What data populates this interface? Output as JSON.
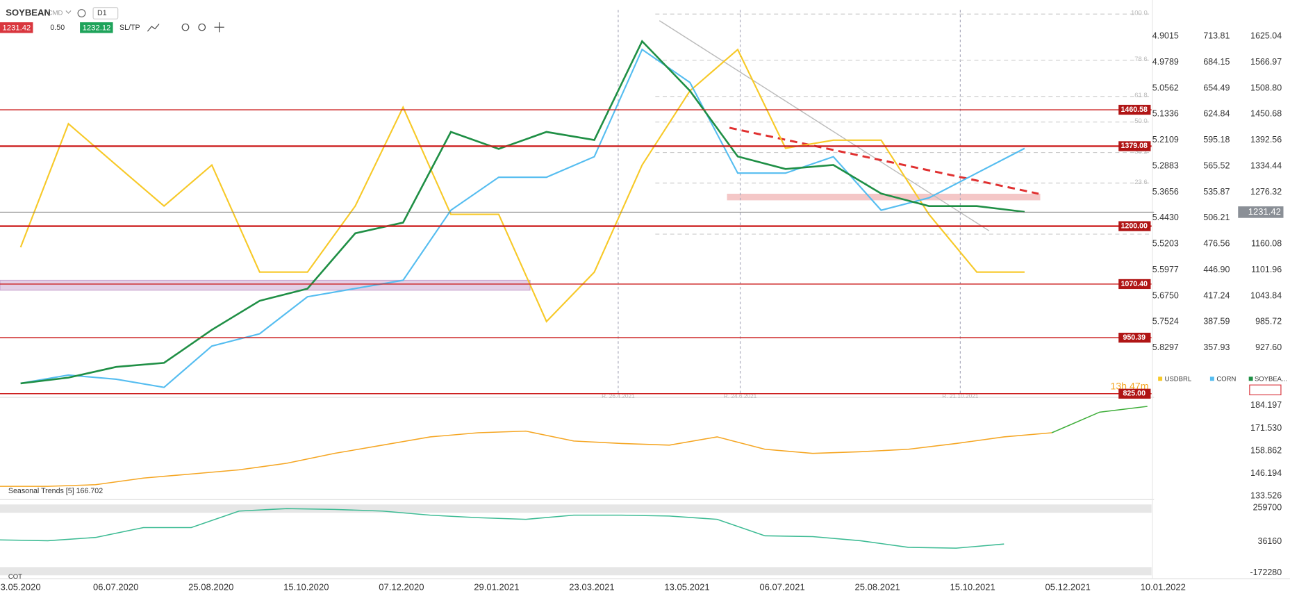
{
  "header": {
    "symbol": "SOYBEAN",
    "category": "CMD",
    "interval": "D1",
    "bid": "1231.42",
    "spread": "0.50",
    "ask": "1232.12",
    "sltp": "SL/TP"
  },
  "main": {
    "axes": {
      "usdbrl": [
        4.9015,
        4.9789,
        5.0562,
        5.1336,
        5.2109,
        5.2883,
        5.3656,
        {
          "value": 5.443,
          "label": "5.4430"
        },
        5.5203,
        5.5977,
        {
          "value": 5.675,
          "label": "5.6750"
        },
        5.7524,
        5.8297
      ],
      "corn": [
        713.81,
        684.15,
        654.49,
        624.84,
        595.18,
        565.52,
        535.87,
        506.21,
        476.56,
        {
          "value": 446.9,
          "label": "446.90"
        },
        417.24,
        387.59,
        357.93
      ],
      "soybean": [
        1625.04,
        1566.97,
        {
          "value": 1508.8,
          "label": "1508.80"
        },
        1450.68,
        1392.56,
        1334.44,
        1276.32,
        1160.08,
        1101.96,
        1043.84,
        985.72,
        {
          "value": 927.6,
          "label": "927.60"
        }
      ]
    },
    "levels": [
      1460.58,
      1379.08,
      {
        "value": 1200,
        "label": "1200.00"
      },
      {
        "value": 1070.4,
        "label": "1070.40"
      },
      950.39,
      {
        "value": 825,
        "label": "825.00"
      }
    ],
    "current_price": 1231.42,
    "fib_labels": [
      "100.0",
      "78.6",
      "61.8",
      "50.0",
      "38.2",
      "23.6"
    ],
    "markers": [
      "R. 26.4.2021",
      "R. 24.6.2021",
      "R. 21.10.2021"
    ],
    "countdown": "13h 47m",
    "series": [
      {
        "name": "USDBRL",
        "color": "#f7c928",
        "axis": "usdbrl",
        "values": [
          5.53,
          5.162,
          5.285,
          5.407,
          5.285,
          5.604,
          5.604,
          5.407,
          5.113,
          5.432,
          5.432,
          5.751,
          5.604,
          5.285,
          5.064,
          4.941,
          5.235,
          5.211,
          5.211,
          5.432,
          5.604,
          5.604
        ]
      },
      {
        "name": "CORN",
        "color": "#55bdf0",
        "axis": "corn",
        "values": [
          317.4,
          326.9,
          322.1,
          312.8,
          360,
          374,
          416.3,
          425.7,
          435.1,
          515.2,
          552.8,
          552.8,
          576.3,
          698.7,
          661.1,
          557.5,
          557.5,
          576.3,
          515.2,
          529.3,
          557.5,
          585.8
        ]
      },
      {
        "name": "SOYBEA...",
        "color": "#1f8f45",
        "axis": "soybean",
        "values": [
          848,
          861,
          885,
          894,
          968,
          1033,
          1060,
          1184,
          1208,
          1411,
          1373,
          1411,
          1393,
          1614,
          1503,
          1356,
          1328,
          1337,
          1273,
          1245,
          1245,
          1232
        ]
      }
    ]
  },
  "seasonal": {
    "label": "Seasonal Trends [5] 166.702",
    "ticks": [
      184.197,
      {
        "value": 171.53,
        "label": "171.530"
      },
      158.862,
      146.194,
      133.526
    ],
    "series": [
      {
        "color": "#f5a623",
        "values": [
          139.06,
          139.06,
          139.98,
          143.67,
          145.97,
          148.27,
          151.96,
          157.48,
          162.09,
          166.7,
          169.0,
          169.92,
          164.39,
          163.01,
          162.09,
          166.7,
          159.79,
          157.48,
          158.41,
          159.79,
          163.01,
          166.7,
          169.0,
          null,
          null
        ]
      },
      {
        "color": "#3fae3a",
        "values": [
          null,
          null,
          null,
          null,
          null,
          null,
          null,
          null,
          null,
          null,
          null,
          null,
          null,
          null,
          null,
          null,
          null,
          null,
          null,
          null,
          null,
          null,
          169.0,
          180.51,
          183.73
        ]
      }
    ]
  },
  "cot": {
    "label": "COT",
    "ticks": [
      259700,
      36160,
      -172280
    ],
    "color": "#3dbb94",
    "values": [
      46450,
      41000,
      62800,
      128500,
      128500,
      237800,
      254200,
      248800,
      237800,
      210500,
      194100,
      183200,
      210500,
      210500,
      205000,
      183200,
      73800,
      68300,
      41000,
      -2800,
      -8200,
      19100
    ]
  },
  "dates": [
    "3.05.2020",
    "06.07.2020",
    "25.08.2020",
    "15.10.2020",
    "07.12.2020",
    "29.01.2021",
    "23.03.2021",
    "13.05.2021",
    "06.07.2021",
    "25.08.2021",
    "15.10.2021",
    "05.12.2021",
    "10.01.2022"
  ]
}
